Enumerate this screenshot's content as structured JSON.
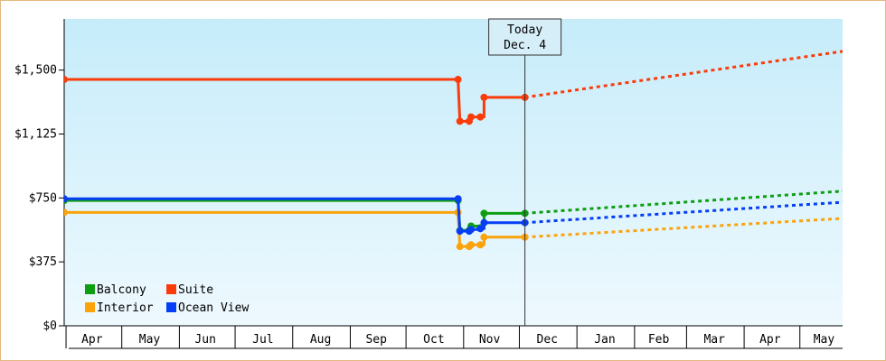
{
  "chart_data": {
    "type": "line",
    "ylim": [
      0,
      1800
    ],
    "y_ticks": [
      {
        "value": 0,
        "label": "$0"
      },
      {
        "value": 375,
        "label": "$375"
      },
      {
        "value": 750,
        "label": "$750"
      },
      {
        "value": 1125,
        "label": "$1,125"
      },
      {
        "value": 1500,
        "label": "$1,500"
      }
    ],
    "x_axis": {
      "start": "2025-03-31",
      "end": "2026-05-24",
      "labels": [
        {
          "date": "2025-04-15",
          "label": "Apr"
        },
        {
          "date": "2025-05-16",
          "label": "May"
        },
        {
          "date": "2025-06-15",
          "label": "Jun"
        },
        {
          "date": "2025-07-16",
          "label": "Jul"
        },
        {
          "date": "2025-08-16",
          "label": "Aug"
        },
        {
          "date": "2025-09-15",
          "label": "Sep"
        },
        {
          "date": "2025-10-16",
          "label": "Oct"
        },
        {
          "date": "2025-11-15",
          "label": "Nov"
        },
        {
          "date": "2025-12-16",
          "label": "Dec"
        },
        {
          "date": "2026-01-16",
          "label": "Jan"
        },
        {
          "date": "2026-02-14",
          "label": "Feb"
        },
        {
          "date": "2026-03-16",
          "label": "Mar"
        },
        {
          "date": "2026-04-15",
          "label": "Apr"
        },
        {
          "date": "2026-05-14",
          "label": "May"
        }
      ],
      "dividers": [
        "2025-04-01",
        "2025-05-01",
        "2025-06-01",
        "2025-07-01",
        "2025-08-01",
        "2025-09-01",
        "2025-10-01",
        "2025-11-01",
        "2025-12-01",
        "2026-01-01",
        "2026-02-01",
        "2026-03-01",
        "2026-04-01",
        "2026-05-01"
      ]
    },
    "today": {
      "date": "2025-12-04",
      "line1": "Today",
      "line2": "Dec. 4"
    },
    "background": {
      "top": "#c6ecfa",
      "bottom": "#eef9fe"
    },
    "grid": true,
    "legend_position": "bottom-left",
    "series": [
      {
        "name": "Balcony",
        "color": "#0d9e12",
        "points": [
          [
            "2025-03-31",
            735
          ],
          [
            "2025-10-29",
            735
          ],
          [
            "2025-10-30",
            560
          ],
          [
            "2025-11-04",
            560
          ],
          [
            "2025-11-05",
            585
          ],
          [
            "2025-11-10",
            575
          ],
          [
            "2025-11-12",
            660
          ],
          [
            "2025-12-04",
            660
          ]
        ],
        "forecast": [
          [
            "2025-12-04",
            660
          ],
          [
            "2026-05-24",
            790
          ]
        ]
      },
      {
        "name": "Suite",
        "color": "#fa3c0a",
        "points": [
          [
            "2025-03-31",
            1445
          ],
          [
            "2025-10-29",
            1445
          ],
          [
            "2025-10-30",
            1200
          ],
          [
            "2025-11-04",
            1200
          ],
          [
            "2025-11-05",
            1225
          ],
          [
            "2025-11-10",
            1225
          ],
          [
            "2025-11-12",
            1340
          ],
          [
            "2025-12-04",
            1340
          ]
        ],
        "forecast": [
          [
            "2025-12-04",
            1340
          ],
          [
            "2026-05-24",
            1610
          ]
        ]
      },
      {
        "name": "Interior",
        "color": "#fba30b",
        "points": [
          [
            "2025-03-31",
            665
          ],
          [
            "2025-10-29",
            665
          ],
          [
            "2025-10-30",
            465
          ],
          [
            "2025-11-04",
            465
          ],
          [
            "2025-11-05",
            475
          ],
          [
            "2025-11-10",
            475
          ],
          [
            "2025-11-12",
            520
          ],
          [
            "2025-12-04",
            520
          ]
        ],
        "forecast": [
          [
            "2025-12-04",
            520
          ],
          [
            "2026-05-24",
            630
          ]
        ]
      },
      {
        "name": "Ocean View",
        "color": "#063ef5",
        "points": [
          [
            "2025-03-31",
            745
          ],
          [
            "2025-10-29",
            745
          ],
          [
            "2025-10-30",
            555
          ],
          [
            "2025-11-04",
            555
          ],
          [
            "2025-11-05",
            565
          ],
          [
            "2025-11-10",
            570
          ],
          [
            "2025-11-12",
            605
          ],
          [
            "2025-12-04",
            605
          ]
        ],
        "forecast": [
          [
            "2025-12-04",
            605
          ],
          [
            "2026-05-24",
            725
          ]
        ]
      }
    ],
    "legend_order": [
      "Balcony",
      "Suite",
      "Interior",
      "Ocean View"
    ]
  }
}
